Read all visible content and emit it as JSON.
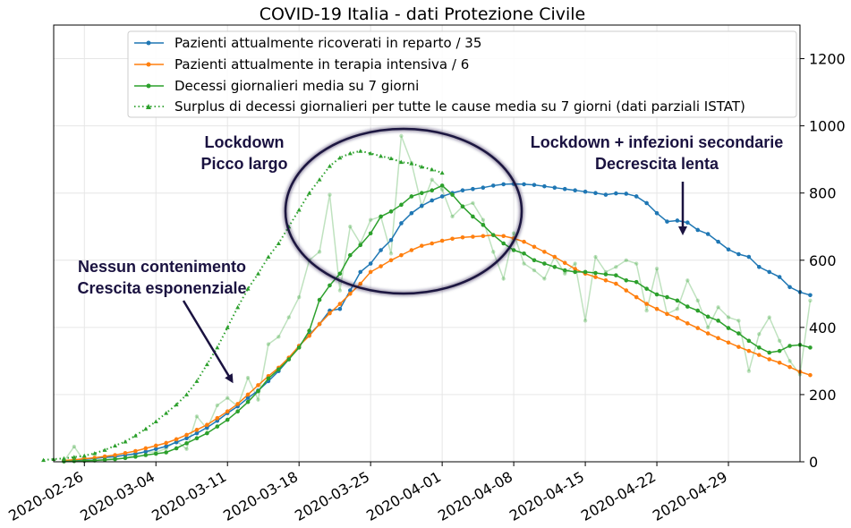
{
  "chart_data": {
    "type": "line",
    "title": "COVID-19 Italia - dati Protezione Civile",
    "xlabel": "",
    "ylabel": "",
    "x_start": "2020-02-24",
    "x_end": "2020-05-04",
    "xlim": [
      "2020-02-23",
      "2020-05-06"
    ],
    "ylim": [
      0,
      1300
    ],
    "y_ticks": [
      0,
      200,
      400,
      600,
      800,
      1000,
      1200
    ],
    "x_ticks": [
      "2020-02-26",
      "2020-03-04",
      "2020-03-11",
      "2020-03-18",
      "2020-03-25",
      "2020-04-01",
      "2020-04-08",
      "2020-04-15",
      "2020-04-22",
      "2020-04-29"
    ],
    "y_axis_position": "right",
    "grid": true,
    "legend": {
      "position": "top-center"
    },
    "series": [
      {
        "name": "Pazienti attualmente ricoverati in reparto / 35",
        "color": "#1f77b4",
        "style": "solid-dot",
        "values": [
          3,
          5,
          7,
          10,
          13,
          15,
          20,
          24,
          30,
          38,
          46,
          58,
          70,
          85,
          102,
          122,
          145,
          165,
          190,
          212,
          240,
          270,
          305,
          345,
          378,
          410,
          450,
          455,
          510,
          565,
          590,
          630,
          660,
          710,
          740,
          762,
          778,
          790,
          800,
          808,
          812,
          816,
          822,
          826,
          827,
          826,
          824,
          820,
          816,
          812,
          808,
          804,
          800,
          795,
          799,
          798,
          790,
          770,
          740,
          715,
          718,
          712,
          690,
          678,
          655,
          632,
          618,
          610,
          580,
          565,
          550,
          520,
          505,
          496
        ]
      },
      {
        "name": "Pazienti attualmente in terapia intensiva / 6",
        "color": "#ff7f0e",
        "style": "solid-dot",
        "values": [
          4,
          6,
          9,
          12,
          16,
          20,
          26,
          32,
          40,
          48,
          56,
          67,
          80,
          95,
          110,
          130,
          150,
          172,
          200,
          228,
          255,
          280,
          310,
          345,
          375,
          410,
          442,
          470,
          500,
          530,
          565,
          582,
          600,
          615,
          630,
          643,
          650,
          658,
          664,
          668,
          670,
          672,
          675,
          672,
          665,
          655,
          640,
          625,
          610,
          592,
          574,
          560,
          550,
          540,
          530,
          510,
          490,
          470,
          455,
          440,
          428,
          412,
          398,
          382,
          368,
          355,
          342,
          330,
          318,
          305,
          295,
          282,
          268,
          258
        ]
      },
      {
        "name": "Decessi giornalieri media su 7 giorni",
        "color": "#2ca02c",
        "style": "solid-dot",
        "values": [
          1,
          2,
          3,
          4,
          6,
          8,
          11,
          15,
          20,
          24,
          28,
          40,
          55,
          70,
          85,
          105,
          125,
          150,
          178,
          210,
          248,
          275,
          305,
          340,
          390,
          482,
          525,
          560,
          615,
          645,
          680,
          730,
          745,
          765,
          790,
          800,
          808,
          822,
          795,
          760,
          730,
          705,
          675,
          650,
          630,
          620,
          600,
          590,
          580,
          570,
          565,
          565,
          562,
          558,
          555,
          540,
          535,
          515,
          498,
          490,
          480,
          462,
          450,
          432,
          420,
          398,
          382,
          360,
          340,
          325,
          330,
          345,
          348,
          340
        ]
      },
      {
        "name": "Surplus di decessi giornalieri per tutte le cause media su 7 giorni (dati parziali ISTAT)",
        "color": "#2ca02c",
        "style": "dotted-triangle",
        "start": "2020-02-22",
        "values": [
          5,
          8,
          10,
          14,
          18,
          25,
          35,
          48,
          60,
          78,
          98,
          120,
          145,
          170,
          200,
          240,
          290,
          340,
          400,
          460,
          515,
          560,
          610,
          650,
          700,
          750,
          800,
          840,
          880,
          905,
          918,
          925,
          918,
          910,
          903,
          892,
          888,
          878,
          870,
          860
        ]
      }
    ],
    "raw_daily_deaths": {
      "color": "#2ca02c",
      "style": "faint",
      "values": [
        2,
        45,
        2,
        3,
        5,
        6,
        12,
        21,
        30,
        28,
        40,
        62,
        38,
        135,
        98,
        168,
        190,
        165,
        250,
        185,
        350,
        372,
        430,
        490,
        600,
        625,
        795,
        510,
        700,
        650,
        720,
        730,
        620,
        970,
        890,
        760,
        840,
        810,
        730,
        760,
        770,
        720,
        625,
        545,
        680,
        590,
        570,
        545,
        610,
        560,
        590,
        420,
        610,
        565,
        580,
        600,
        590,
        450,
        575,
        440,
        455,
        540,
        480,
        400,
        460,
        430,
        420,
        270,
        380,
        430,
        360,
        300,
        260,
        480
      ]
    },
    "annotations": [
      {
        "lines": [
          "Lockdown",
          "Picco largo"
        ]
      },
      {
        "lines": [
          "Lockdown + infezioni secondarie",
          "Decrescita lenta"
        ]
      },
      {
        "lines": [
          "Nessun contenimento",
          "Crescita esponenziale"
        ]
      }
    ]
  }
}
